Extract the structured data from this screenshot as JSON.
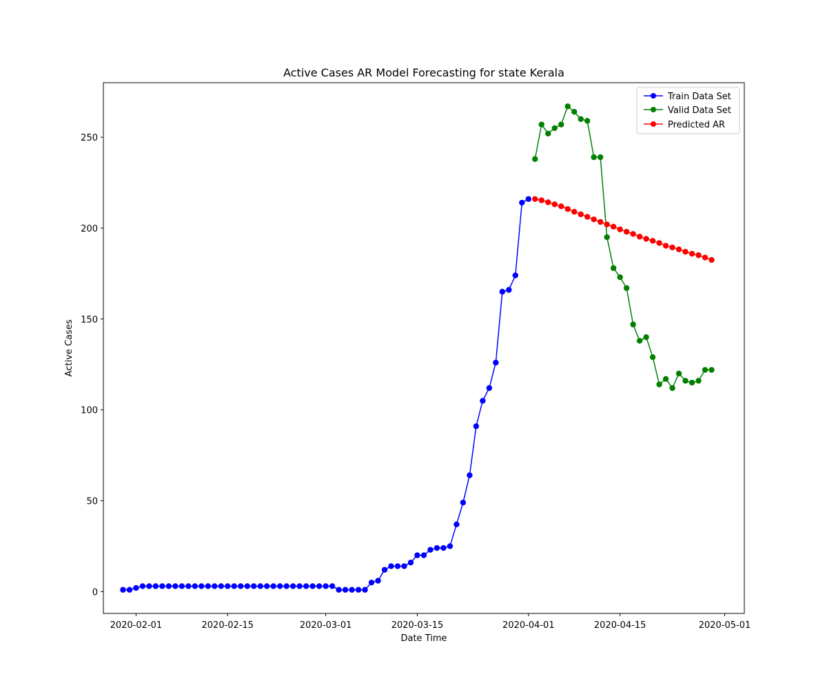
{
  "chart_data": {
    "type": "line",
    "title": "Active Cases AR Model Forecasting for state Kerala",
    "xlabel": "Date Time",
    "ylabel": "Active Cases",
    "xlim": [
      "2020-01-27",
      "2020-05-04"
    ],
    "ylim": [
      -12,
      280
    ],
    "x_ticks": [
      {
        "date": "2020-02-01",
        "label": "2020-02-01"
      },
      {
        "date": "2020-02-15",
        "label": "2020-02-15"
      },
      {
        "date": "2020-03-01",
        "label": "2020-03-01"
      },
      {
        "date": "2020-03-15",
        "label": "2020-03-15"
      },
      {
        "date": "2020-04-01",
        "label": "2020-04-01"
      },
      {
        "date": "2020-04-15",
        "label": "2020-04-15"
      },
      {
        "date": "2020-05-01",
        "label": "2020-05-01"
      }
    ],
    "y_ticks": [
      0,
      50,
      100,
      150,
      200,
      250
    ],
    "grid": false,
    "legend_position": "top-right",
    "series": [
      {
        "name": "Train Data Set",
        "color": "#0000ff",
        "marker": "circle",
        "x": [
          "2020-01-30",
          "2020-01-31",
          "2020-02-01",
          "2020-02-02",
          "2020-02-03",
          "2020-02-04",
          "2020-02-05",
          "2020-02-06",
          "2020-02-07",
          "2020-02-08",
          "2020-02-09",
          "2020-02-10",
          "2020-02-11",
          "2020-02-12",
          "2020-02-13",
          "2020-02-14",
          "2020-02-15",
          "2020-02-16",
          "2020-02-17",
          "2020-02-18",
          "2020-02-19",
          "2020-02-20",
          "2020-02-21",
          "2020-02-22",
          "2020-02-23",
          "2020-02-24",
          "2020-02-25",
          "2020-02-26",
          "2020-02-27",
          "2020-02-28",
          "2020-02-29",
          "2020-03-01",
          "2020-03-02",
          "2020-03-03",
          "2020-03-04",
          "2020-03-05",
          "2020-03-06",
          "2020-03-07",
          "2020-03-08",
          "2020-03-09",
          "2020-03-10",
          "2020-03-11",
          "2020-03-12",
          "2020-03-13",
          "2020-03-14",
          "2020-03-15",
          "2020-03-16",
          "2020-03-17",
          "2020-03-18",
          "2020-03-19",
          "2020-03-20",
          "2020-03-21",
          "2020-03-22",
          "2020-03-23",
          "2020-03-24",
          "2020-03-25",
          "2020-03-26",
          "2020-03-27",
          "2020-03-28",
          "2020-03-29",
          "2020-03-30",
          "2020-03-31",
          "2020-04-01"
        ],
        "values": [
          1,
          1,
          2,
          3,
          3,
          3,
          3,
          3,
          3,
          3,
          3,
          3,
          3,
          3,
          3,
          3,
          3,
          3,
          3,
          3,
          3,
          3,
          3,
          3,
          3,
          3,
          3,
          3,
          3,
          3,
          3,
          3,
          3,
          1,
          1,
          1,
          1,
          1,
          5,
          6,
          12,
          14,
          14,
          14,
          16,
          20,
          20,
          23,
          24,
          24,
          25,
          37,
          49,
          64,
          91,
          105,
          112,
          126,
          165,
          166,
          174,
          214,
          216
        ]
      },
      {
        "name": "Valid Data Set",
        "color": "#008000",
        "marker": "circle",
        "x": [
          "2020-04-02",
          "2020-04-03",
          "2020-04-04",
          "2020-04-05",
          "2020-04-06",
          "2020-04-07",
          "2020-04-08",
          "2020-04-09",
          "2020-04-10",
          "2020-04-11",
          "2020-04-12",
          "2020-04-13",
          "2020-04-14",
          "2020-04-15",
          "2020-04-16",
          "2020-04-17",
          "2020-04-18",
          "2020-04-19",
          "2020-04-20",
          "2020-04-21",
          "2020-04-22",
          "2020-04-23",
          "2020-04-24",
          "2020-04-25",
          "2020-04-26",
          "2020-04-27",
          "2020-04-28",
          "2020-04-29"
        ],
        "values": [
          238,
          257,
          252,
          255,
          257,
          267,
          264,
          260,
          259,
          239,
          239,
          195,
          178,
          173,
          167,
          147,
          138,
          140,
          129,
          114,
          117,
          112,
          120,
          116,
          115,
          116,
          122,
          122
        ]
      },
      {
        "name": "Predicted AR",
        "color": "#ff0000",
        "marker": "circle",
        "x": [
          "2020-04-02",
          "2020-04-03",
          "2020-04-04",
          "2020-04-05",
          "2020-04-06",
          "2020-04-07",
          "2020-04-08",
          "2020-04-09",
          "2020-04-10",
          "2020-04-11",
          "2020-04-12",
          "2020-04-13",
          "2020-04-14",
          "2020-04-15",
          "2020-04-16",
          "2020-04-17",
          "2020-04-18",
          "2020-04-19",
          "2020-04-20",
          "2020-04-21",
          "2020-04-22",
          "2020-04-23",
          "2020-04-24",
          "2020-04-25",
          "2020-04-26",
          "2020-04-27",
          "2020-04-28",
          "2020-04-29"
        ],
        "values": [
          216,
          215.3,
          214.2,
          213.1,
          212,
          210.5,
          209,
          207.6,
          206.2,
          204.8,
          203.4,
          202,
          200.8,
          199.3,
          198,
          196.8,
          195.3,
          194.1,
          193,
          191.8,
          190.3,
          189.4,
          188.3,
          187,
          185.9,
          185.1,
          183.8,
          182.5
        ]
      }
    ]
  }
}
